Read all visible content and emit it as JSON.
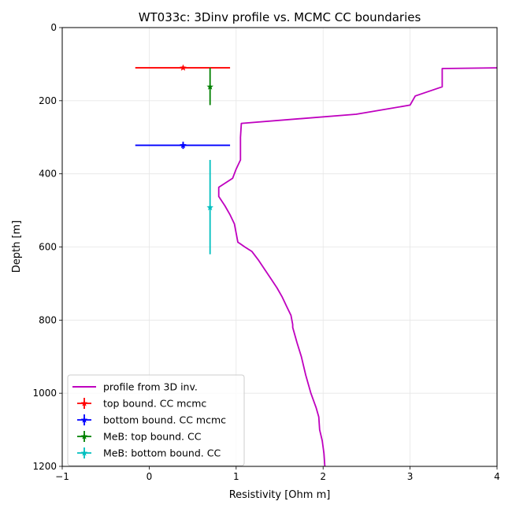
{
  "chart_data": {
    "type": "line",
    "title": "WT033c: 3Dinv profile vs. MCMC CC boundaries",
    "xlabel": "Resistivity [Ohm m]",
    "ylabel": "Depth [m]",
    "xlim": [
      -1,
      4
    ],
    "ylim": [
      1200,
      0
    ],
    "y_inverted": true,
    "xticks": [
      -1,
      0,
      1,
      2,
      3,
      4
    ],
    "xtick_labels": [
      "−1",
      "0",
      "1",
      "2",
      "3",
      "4"
    ],
    "yticks": [
      0,
      200,
      400,
      600,
      800,
      1000,
      1200
    ],
    "ytick_labels": [
      "0",
      "200",
      "400",
      "600",
      "800",
      "1000",
      "1200"
    ],
    "grid": true,
    "legend_position": "lower-left",
    "series": [
      {
        "name": "profile from 3D inv.",
        "kind": "line",
        "color": "#bf00bf",
        "x": [
          4.0,
          3.37,
          3.37,
          3.06,
          3.0,
          2.38,
          1.06,
          1.05,
          1.05,
          1.0,
          0.96,
          0.8,
          0.8,
          0.87,
          0.93,
          0.98,
          1.0,
          1.02,
          1.04,
          1.1,
          1.18,
          1.26,
          1.33,
          1.4,
          1.47,
          1.53,
          1.58,
          1.63,
          1.65,
          1.65,
          1.7,
          1.75,
          1.8,
          1.86,
          1.92,
          1.95,
          1.96,
          1.99,
          2.01,
          2.02
        ],
        "y": [
          110,
          112,
          162,
          187,
          212,
          237,
          262,
          300,
          362,
          387,
          412,
          437,
          462,
          487,
          512,
          537,
          562,
          587,
          590,
          600,
          612,
          637,
          662,
          687,
          712,
          737,
          762,
          787,
          812,
          820,
          862,
          900,
          950,
          1000,
          1040,
          1065,
          1100,
          1130,
          1165,
          1200
        ]
      },
      {
        "name": "top bound. CC mcmc",
        "kind": "errorbar",
        "color": "#ff0000",
        "x": 0.39,
        "y": 110,
        "x_range": [
          -0.16,
          0.93
        ]
      },
      {
        "name": "bottom bound. CC mcmc",
        "kind": "errorbar",
        "color": "#0000ff",
        "x": 0.39,
        "y": 322,
        "x_range": [
          -0.16,
          0.93
        ],
        "y_range": [
          312,
          332
        ]
      },
      {
        "name": "MeB: top bound. CC",
        "kind": "errorbar",
        "color": "#008000",
        "x": 0.7,
        "y": 162,
        "y_range": [
          110,
          212
        ]
      },
      {
        "name": "MeB: bottom bound. CC",
        "kind": "errorbar",
        "color": "#00bfbf",
        "x": 0.7,
        "y": 492,
        "y_range": [
          362,
          620
        ]
      }
    ]
  }
}
